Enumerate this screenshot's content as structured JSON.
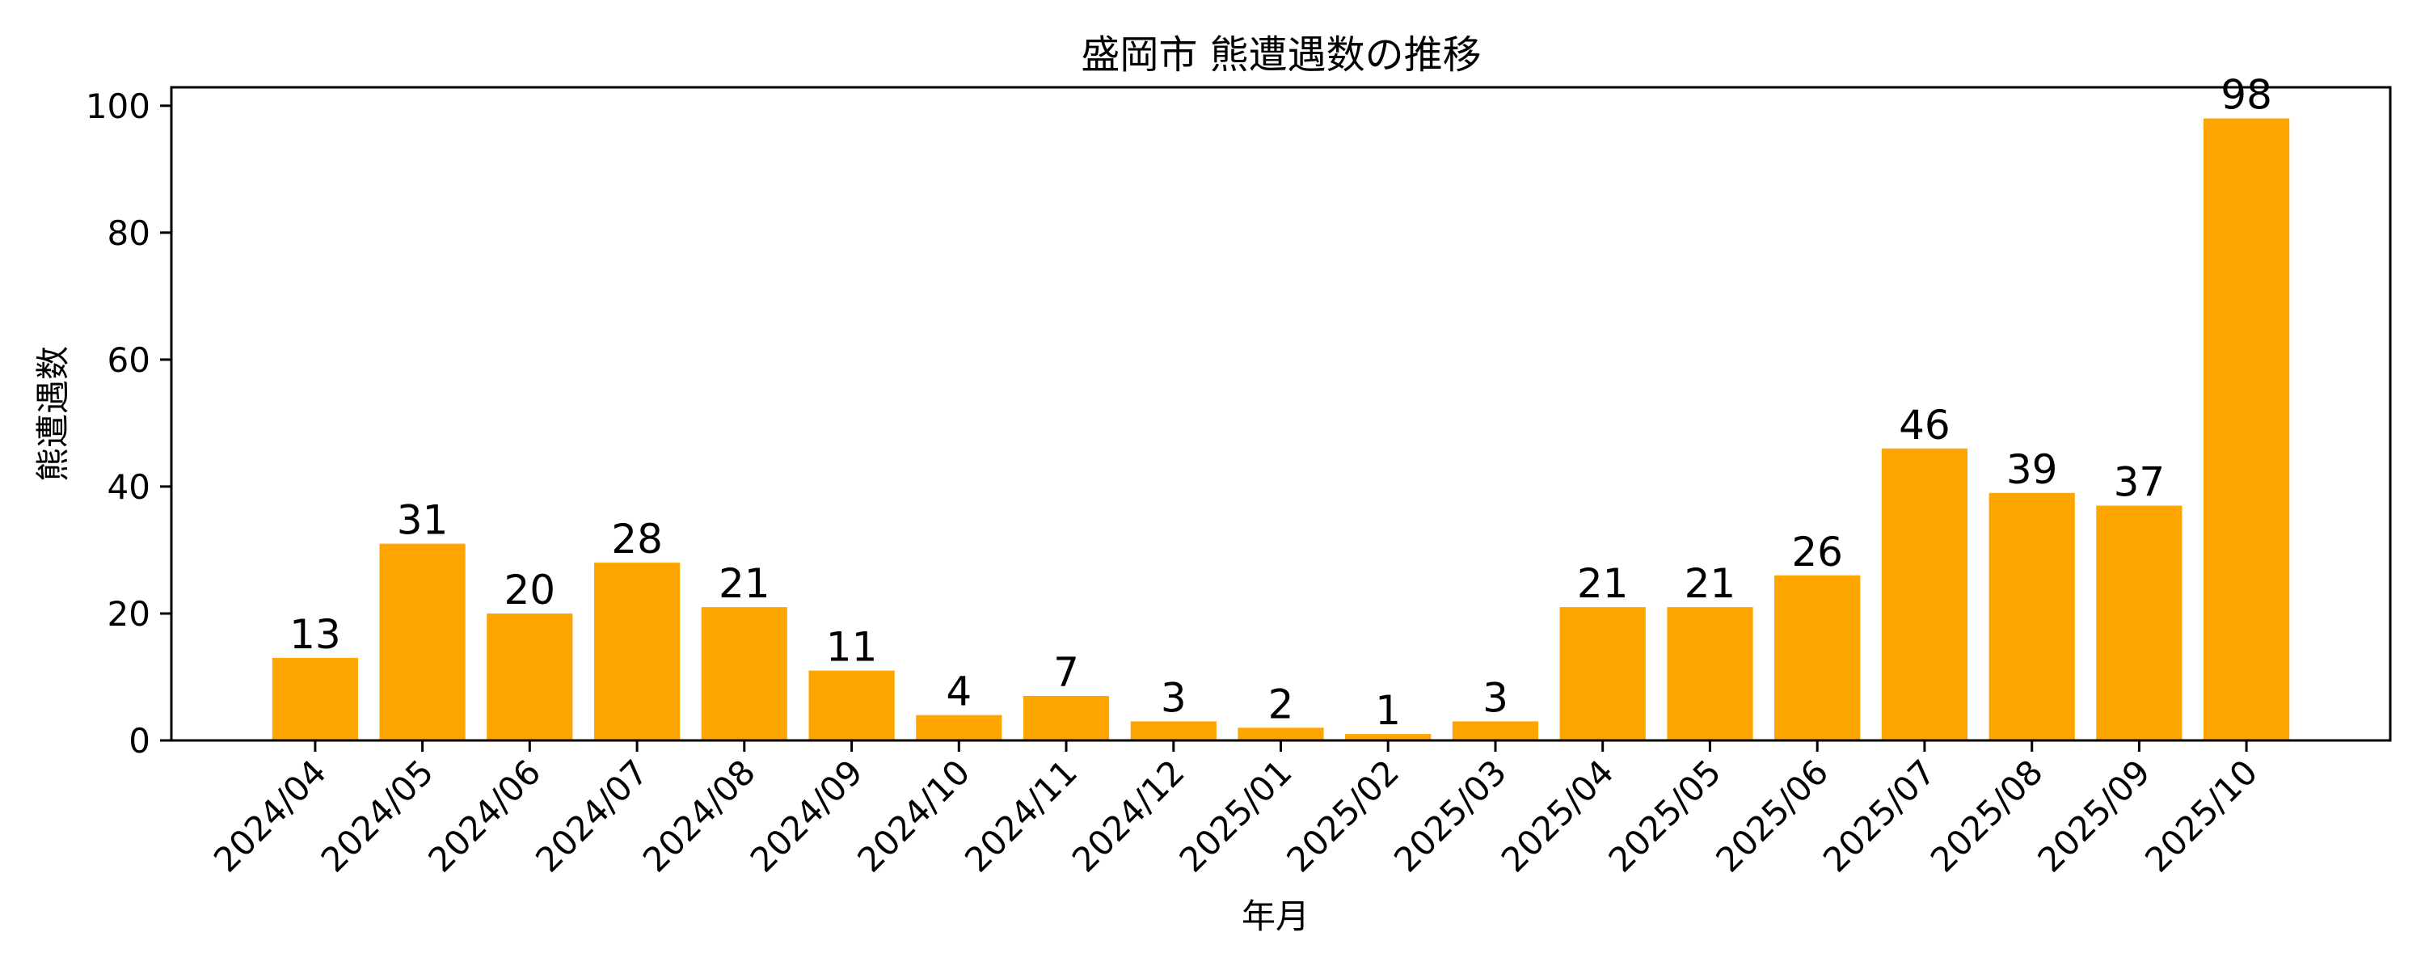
{
  "figure": {
    "background_color": "#ffffff",
    "text_color": "#000000"
  },
  "chart_data": {
    "type": "bar",
    "title": "盛岡市 熊遭遇数の推移",
    "xlabel": "年月",
    "ylabel": "熊遭遇数",
    "categories": [
      "2024/04",
      "2024/05",
      "2024/06",
      "2024/07",
      "2024/08",
      "2024/09",
      "2024/10",
      "2024/11",
      "2024/12",
      "2025/01",
      "2025/02",
      "2025/03",
      "2025/04",
      "2025/05",
      "2025/06",
      "2025/07",
      "2025/08",
      "2025/09",
      "2025/10"
    ],
    "values": [
      13,
      31,
      20,
      28,
      21,
      11,
      4,
      7,
      3,
      2,
      1,
      3,
      21,
      21,
      26,
      46,
      39,
      37,
      98
    ],
    "bar_color": "#FFA500",
    "yticks": [
      0,
      20,
      40,
      60,
      80,
      100
    ],
    "ylim": [
      0,
      102.9
    ],
    "xtick_rotation_deg": 45,
    "grid": false,
    "legend": null,
    "value_labels_shown": true
  }
}
